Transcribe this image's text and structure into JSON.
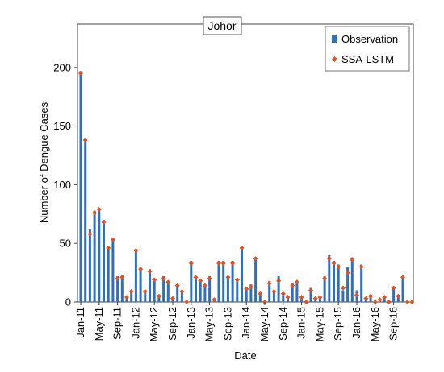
{
  "chart_data": {
    "type": "bar",
    "title": "Johor",
    "xlabel": "Date",
    "ylabel": "Number of Dengue Cases",
    "ylim": [
      0,
      237
    ],
    "yticks": [
      0,
      50,
      100,
      150,
      200
    ],
    "grid": false,
    "legend_placement": "top-right",
    "x_tick_labels": [
      "Jan-11",
      "May-11",
      "Sep-11",
      "Jan-12",
      "May-12",
      "Sep-12",
      "Jan-13",
      "May-13",
      "Sep-13",
      "Jan-14",
      "May-14",
      "Sep-14",
      "Jan-15",
      "May-15",
      "Sep-15",
      "Jan-16",
      "May-16",
      "Sep-16"
    ],
    "x_tick_every": 4,
    "series": [
      {
        "name": "Observation",
        "kind": "bar",
        "color": "#2e6fbf",
        "values": [
          197,
          139,
          62,
          78,
          80,
          70,
          48,
          55,
          22,
          23,
          5,
          10,
          45,
          30,
          10,
          28,
          20,
          5,
          22,
          18,
          2,
          15,
          10,
          1,
          35,
          22,
          20,
          15,
          22,
          3,
          35,
          35,
          20,
          35,
          20,
          48,
          12,
          15,
          38,
          8,
          1,
          18,
          10,
          22,
          8,
          5,
          16,
          18,
          5,
          1,
          12,
          3,
          5,
          22,
          40,
          35,
          32,
          10,
          30,
          38,
          10,
          32,
          4,
          6,
          1,
          3,
          5,
          1,
          12,
          6,
          22,
          1,
          1
        ]
      },
      {
        "name": "SSA-LSTM",
        "kind": "marker",
        "color": "#e2541f",
        "values": [
          195,
          138,
          58,
          76,
          79,
          68,
          46,
          53,
          20,
          21,
          4,
          9,
          44,
          28,
          9,
          26,
          19,
          5,
          20,
          17,
          3,
          14,
          9,
          0,
          33,
          21,
          18,
          14,
          20,
          2,
          33,
          33,
          21,
          33,
          19,
          46,
          11,
          13,
          37,
          7,
          0,
          16,
          9,
          18,
          7,
          4,
          14,
          17,
          4,
          0,
          10,
          3,
          4,
          20,
          37,
          33,
          30,
          12,
          25,
          36,
          6,
          30,
          3,
          5,
          0,
          2,
          4,
          0,
          12,
          5,
          21,
          0,
          0
        ]
      }
    ]
  }
}
